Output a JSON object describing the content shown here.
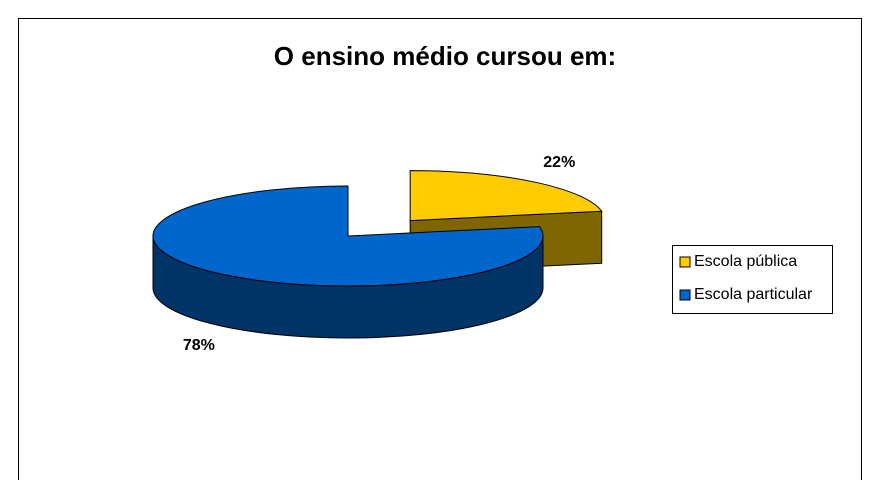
{
  "chart_data": {
    "type": "pie",
    "title": "O ensino médio cursou em:",
    "categories": [
      "Escola pública",
      "Escola particular"
    ],
    "values": [
      22,
      78
    ],
    "value_labels": [
      "22%",
      "78%"
    ],
    "colors": [
      "#ffcc00",
      "#0066cc"
    ],
    "legend": "right"
  }
}
